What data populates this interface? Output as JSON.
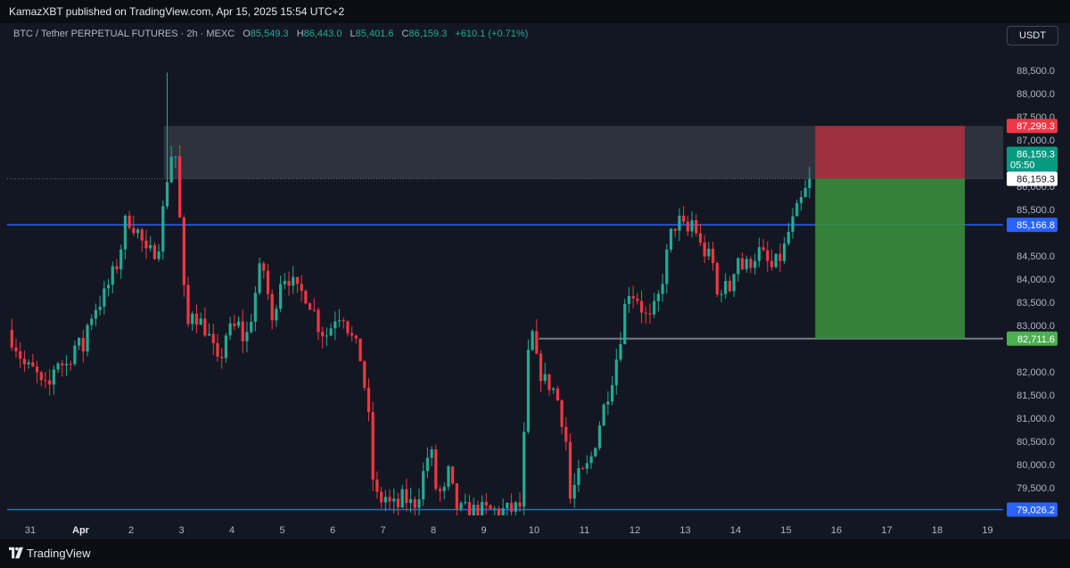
{
  "header": {
    "published_text": "KamazXBT published on TradingView.com, Apr 15, 2025 15:54 UTC+2"
  },
  "symbol": {
    "title": "BTC / Tether PERPETUAL FUTURES · 2h · MEXC",
    "open_label": "O",
    "open_value": "85,549.3",
    "high_label": "H",
    "high_value": "86,443.0",
    "low_label": "L",
    "low_value": "85,401.6",
    "close_label": "C",
    "close_value": "86,159.3",
    "change": "+610.1 (+0.71%)"
  },
  "currency": "USDT",
  "footer": {
    "brand": "TradingView"
  },
  "colors": {
    "up": "#22ab94",
    "down": "#f23645",
    "horizontal_line": "#2962ff",
    "zone": "#787b86",
    "stop_box": "#b2303f",
    "target_box": "#388e3c"
  },
  "chart_data": {
    "type": "candlestick",
    "interval": "2h",
    "ylim": [
      78900,
      88900
    ],
    "price_ticks": [
      {
        "value": 88500,
        "label": "88,500.0"
      },
      {
        "value": 88000,
        "label": "88,000.0"
      },
      {
        "value": 87500,
        "label": "87,500.0"
      },
      {
        "value": 87000,
        "label": "87,000.0"
      },
      {
        "value": 86000,
        "label": "86,000.0"
      },
      {
        "value": 85500,
        "label": "85,500.0"
      },
      {
        "value": 84500,
        "label": "84,500.0"
      },
      {
        "value": 84000,
        "label": "84,000.0"
      },
      {
        "value": 83500,
        "label": "83,500.0"
      },
      {
        "value": 83000,
        "label": "83,000.0"
      },
      {
        "value": 82000,
        "label": "82,000.0"
      },
      {
        "value": 81500,
        "label": "81,500.0"
      },
      {
        "value": 81000,
        "label": "81,000.0"
      },
      {
        "value": 80500,
        "label": "80,500.0"
      },
      {
        "value": 80000,
        "label": "80,000.0"
      },
      {
        "value": 79500,
        "label": "79,500.0"
      }
    ],
    "date_ticks": [
      {
        "day": 0,
        "label": "31"
      },
      {
        "day": 1,
        "label": "Apr"
      },
      {
        "day": 2,
        "label": "2"
      },
      {
        "day": 3,
        "label": "3"
      },
      {
        "day": 4,
        "label": "4"
      },
      {
        "day": 5,
        "label": "5"
      },
      {
        "day": 6,
        "label": "6"
      },
      {
        "day": 7,
        "label": "7"
      },
      {
        "day": 8,
        "label": "8"
      },
      {
        "day": 9,
        "label": "9"
      },
      {
        "day": 10,
        "label": "10"
      },
      {
        "day": 11,
        "label": "11"
      },
      {
        "day": 12,
        "label": "12"
      },
      {
        "day": 13,
        "label": "13"
      },
      {
        "day": 14,
        "label": "14"
      },
      {
        "day": 15,
        "label": "15"
      },
      {
        "day": 16,
        "label": "16"
      },
      {
        "day": 17,
        "label": "17"
      },
      {
        "day": 18,
        "label": "18"
      },
      {
        "day": 19,
        "label": "19"
      }
    ],
    "horizontal_lines": [
      {
        "price": 85166.8,
        "label": "85,166.8"
      },
      {
        "price": 79026.2,
        "label": "79,026.2"
      }
    ],
    "supply_zone": {
      "top": 87299.3,
      "bottom": 86159.3,
      "from_day": 2.65,
      "to_day": 19.1
    },
    "support_line": {
      "price": 82711.6,
      "from_day": 10.1,
      "to_day": 19.1
    },
    "position": {
      "type": "long",
      "from_day": 15.58,
      "to_day": 18.55,
      "stop": 87299.3,
      "entry": 86159.3,
      "target": 82711.6,
      "stop_label": "87,299.3",
      "entry_label": "86,159.3",
      "target_label": "82,711.6",
      "last_price_label": "86,159.3",
      "countdown": "05:50"
    },
    "anchors": [
      [
        -0.45,
        82900
      ],
      [
        -0.3,
        82600
      ],
      [
        -0.1,
        82100
      ],
      [
        0.1,
        82000
      ],
      [
        0.25,
        81600
      ],
      [
        0.4,
        81700
      ],
      [
        0.5,
        82300
      ],
      [
        0.7,
        82100
      ],
      [
        0.9,
        82600
      ],
      [
        1.05,
        82500
      ],
      [
        1.15,
        83100
      ],
      [
        1.3,
        83400
      ],
      [
        1.45,
        83600
      ],
      [
        1.6,
        84000
      ],
      [
        1.75,
        84400
      ],
      [
        1.88,
        85200
      ],
      [
        1.95,
        85300
      ],
      [
        2.1,
        85100
      ],
      [
        2.25,
        84700
      ],
      [
        2.3,
        84500
      ],
      [
        2.45,
        84600
      ],
      [
        2.55,
        84800
      ],
      [
        2.65,
        85600
      ],
      [
        2.75,
        86500
      ],
      [
        2.83,
        86800
      ],
      [
        2.9,
        86600
      ],
      [
        3.0,
        84600
      ],
      [
        3.1,
        82800
      ],
      [
        3.2,
        83400
      ],
      [
        3.35,
        83100
      ],
      [
        3.5,
        82900
      ],
      [
        3.65,
        82400
      ],
      [
        3.75,
        82000
      ],
      [
        3.85,
        82800
      ],
      [
        4.0,
        82900
      ],
      [
        4.15,
        83000
      ],
      [
        4.25,
        82600
      ],
      [
        4.35,
        83000
      ],
      [
        4.5,
        83900
      ],
      [
        4.6,
        84400
      ],
      [
        4.7,
        83800
      ],
      [
        4.8,
        83000
      ],
      [
        4.95,
        84000
      ],
      [
        5.1,
        84100
      ],
      [
        5.2,
        83900
      ],
      [
        5.3,
        83700
      ],
      [
        5.45,
        83700
      ],
      [
        5.6,
        83400
      ],
      [
        5.75,
        82900
      ],
      [
        5.9,
        82800
      ],
      [
        6.05,
        83200
      ],
      [
        6.2,
        83300
      ],
      [
        6.35,
        82800
      ],
      [
        6.55,
        82300
      ],
      [
        6.7,
        81200
      ],
      [
        6.8,
        79700
      ],
      [
        6.9,
        79200
      ],
      [
        7.05,
        79300
      ],
      [
        7.15,
        79100
      ],
      [
        7.3,
        79100
      ],
      [
        7.4,
        79300
      ],
      [
        7.6,
        79100
      ],
      [
        7.75,
        79500
      ],
      [
        7.85,
        80100
      ],
      [
        7.95,
        80300
      ],
      [
        8.05,
        79500
      ],
      [
        8.2,
        79300
      ],
      [
        8.3,
        79800
      ],
      [
        8.45,
        79100
      ],
      [
        8.55,
        79000
      ],
      [
        8.75,
        79000
      ],
      [
        9.0,
        79000
      ],
      [
        9.25,
        79000
      ],
      [
        9.5,
        79000
      ],
      [
        9.75,
        79100
      ],
      [
        9.85,
        82000
      ],
      [
        9.95,
        82900
      ],
      [
        10.05,
        82200
      ],
      [
        10.2,
        81800
      ],
      [
        10.35,
        81700
      ],
      [
        10.5,
        81300
      ],
      [
        10.65,
        80400
      ],
      [
        10.72,
        79200
      ],
      [
        10.85,
        79700
      ],
      [
        11.0,
        79800
      ],
      [
        11.15,
        80200
      ],
      [
        11.3,
        80900
      ],
      [
        11.45,
        81500
      ],
      [
        11.6,
        82100
      ],
      [
        11.75,
        83000
      ],
      [
        11.85,
        83800
      ],
      [
        11.95,
        83700
      ],
      [
        12.05,
        83600
      ],
      [
        12.2,
        83200
      ],
      [
        12.3,
        83100
      ],
      [
        12.45,
        83500
      ],
      [
        12.6,
        84300
      ],
      [
        12.7,
        84900
      ],
      [
        12.85,
        85300
      ],
      [
        12.95,
        85100
      ],
      [
        13.05,
        85000
      ],
      [
        13.15,
        85300
      ],
      [
        13.3,
        84700
      ],
      [
        13.45,
        84500
      ],
      [
        13.55,
        84300
      ],
      [
        13.65,
        83500
      ],
      [
        13.75,
        84000
      ],
      [
        13.85,
        83600
      ],
      [
        13.95,
        84200
      ],
      [
        14.05,
        84500
      ],
      [
        14.15,
        84200
      ],
      [
        14.3,
        84400
      ],
      [
        14.45,
        84600
      ],
      [
        14.6,
        84400
      ],
      [
        14.7,
        84200
      ],
      [
        14.85,
        84400
      ],
      [
        14.95,
        84600
      ],
      [
        15.05,
        85000
      ],
      [
        15.2,
        85400
      ],
      [
        15.35,
        85800
      ],
      [
        15.5,
        86159.3
      ]
    ]
  }
}
